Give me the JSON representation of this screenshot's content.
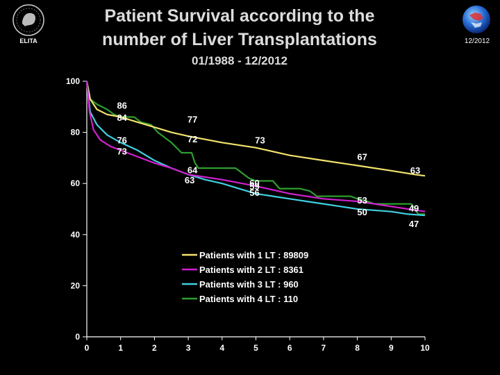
{
  "header": {
    "title_line1": "Patient Survival according to the",
    "title_line2": "number of Liver Transplantations",
    "subtitle": "01/1988 - 12/2012",
    "logo_text": "ELITA",
    "date": "12/2012"
  },
  "colors": {
    "background": "#000000",
    "title": "#dcdcdc",
    "one_lt": "#f2e36c",
    "two_lt": "#d020d0",
    "three_lt": "#40d0e0",
    "four_lt": "#2e9e2e",
    "axis": "#ffffff"
  },
  "chart_data": {
    "type": "line",
    "title": "Patient Survival according to the number of Liver Transplantations",
    "xlabel": "",
    "ylabel": "",
    "xlim": [
      0,
      10
    ],
    "ylim": [
      0,
      100
    ],
    "x_ticks": [
      0,
      1,
      2,
      3,
      4,
      5,
      6,
      7,
      8,
      9,
      10
    ],
    "y_ticks": [
      0,
      20,
      40,
      60,
      80,
      100
    ],
    "grid": false,
    "legend_position": "lower-center",
    "series": [
      {
        "name": "Patients with 1 LT : 89809",
        "color": "#f2e36c",
        "points": [
          [
            0,
            100
          ],
          [
            0.1,
            93
          ],
          [
            0.3,
            89
          ],
          [
            0.6,
            87
          ],
          [
            1,
            86
          ],
          [
            1.5,
            84
          ],
          [
            2,
            82
          ],
          [
            2.5,
            80
          ],
          [
            3,
            78.5
          ],
          [
            4,
            76
          ],
          [
            5,
            74
          ],
          [
            6,
            71
          ],
          [
            7,
            69
          ],
          [
            8,
            67
          ],
          [
            9,
            65
          ],
          [
            9.7,
            63.5
          ],
          [
            10,
            63
          ]
        ]
      },
      {
        "name": "Patients with 2 LT : 8361",
        "color": "#d020d0",
        "points": [
          [
            0,
            100
          ],
          [
            0.08,
            88
          ],
          [
            0.2,
            81
          ],
          [
            0.4,
            77
          ],
          [
            0.7,
            74.5
          ],
          [
            1,
            73
          ],
          [
            1.5,
            70.5
          ],
          [
            2,
            68
          ],
          [
            2.5,
            66
          ],
          [
            3,
            63.5
          ],
          [
            3.5,
            62.5
          ],
          [
            4,
            61.5
          ],
          [
            5,
            59
          ],
          [
            6,
            56
          ],
          [
            7,
            54
          ],
          [
            8,
            53
          ],
          [
            9,
            51
          ],
          [
            10,
            49
          ]
        ]
      },
      {
        "name": "Patients with 3 LT : 960",
        "color": "#40d0e0",
        "points": [
          [
            0,
            100
          ],
          [
            0.1,
            88
          ],
          [
            0.3,
            83
          ],
          [
            0.6,
            79
          ],
          [
            1,
            76
          ],
          [
            1.5,
            73
          ],
          [
            2,
            69
          ],
          [
            2.5,
            66
          ],
          [
            3,
            63.5
          ],
          [
            3.5,
            61.5
          ],
          [
            4,
            60
          ],
          [
            4.5,
            58
          ],
          [
            5,
            56
          ],
          [
            5.5,
            55
          ],
          [
            6,
            54
          ],
          [
            6.5,
            53
          ],
          [
            7,
            52
          ],
          [
            7.5,
            51
          ],
          [
            8,
            50
          ],
          [
            8.5,
            49.5
          ],
          [
            9,
            49
          ],
          [
            9.5,
            48
          ],
          [
            10,
            47.5
          ]
        ]
      },
      {
        "name": "Patients with 4 LT : 110",
        "color": "#2e9e2e",
        "points": [
          [
            0,
            100
          ],
          [
            0.1,
            93
          ],
          [
            0.3,
            91
          ],
          [
            0.6,
            89
          ],
          [
            0.8,
            87
          ],
          [
            1,
            86
          ],
          [
            1.4,
            86
          ],
          [
            1.6,
            84
          ],
          [
            1.9,
            83
          ],
          [
            2.1,
            80
          ],
          [
            2.5,
            76
          ],
          [
            2.8,
            72
          ],
          [
            3.1,
            72
          ],
          [
            3.2,
            68
          ],
          [
            3.3,
            66
          ],
          [
            4,
            66
          ],
          [
            4.4,
            66
          ],
          [
            4.6,
            64
          ],
          [
            4.8,
            62
          ],
          [
            5,
            61
          ],
          [
            5.5,
            61
          ],
          [
            5.7,
            58
          ],
          [
            6.3,
            58
          ],
          [
            6.6,
            57
          ],
          [
            6.8,
            55
          ],
          [
            7.5,
            55
          ],
          [
            7.8,
            55
          ],
          [
            8,
            54
          ],
          [
            8.3,
            53
          ],
          [
            8.5,
            52
          ],
          [
            9,
            52
          ],
          [
            9.6,
            52
          ],
          [
            9.8,
            48
          ],
          [
            10,
            48
          ]
        ]
      }
    ],
    "annotations": [
      {
        "text": "86",
        "x": 1,
        "y": 86,
        "color": "#ffffff"
      },
      {
        "text": "84",
        "x": 1,
        "y": 84,
        "color": "#ffffff"
      },
      {
        "text": "76",
        "x": 1,
        "y": 76,
        "color": "#ffffff"
      },
      {
        "text": "73",
        "x": 1,
        "y": 73,
        "color": "#ffffff"
      },
      {
        "text": "77",
        "x": 3,
        "y": 77,
        "color": "#ffffff"
      },
      {
        "text": "72",
        "x": 3,
        "y": 72,
        "color": "#ffffff"
      },
      {
        "text": "64",
        "x": 3,
        "y": 64,
        "color": "#ffffff"
      },
      {
        "text": "63",
        "x": 3,
        "y": 63,
        "color": "#ffffff"
      },
      {
        "text": "73",
        "x": 5,
        "y": 73,
        "color": "#ffffff"
      },
      {
        "text": "60",
        "x": 5,
        "y": 60,
        "color": "#ffffff"
      },
      {
        "text": "59",
        "x": 5,
        "y": 59,
        "color": "#ffffff"
      },
      {
        "text": "56",
        "x": 5,
        "y": 56,
        "color": "#ffffff"
      },
      {
        "text": "67",
        "x": 8,
        "y": 67,
        "color": "#ffffff"
      },
      {
        "text": "53",
        "x": 8,
        "y": 53,
        "color": "#ffffff"
      },
      {
        "text": "50",
        "x": 8,
        "y": 50,
        "color": "#ffffff"
      },
      {
        "text": "63",
        "x": 10,
        "y": 63,
        "color": "#ffffff"
      },
      {
        "text": "49",
        "x": 10,
        "y": 49,
        "color": "#ffffff"
      },
      {
        "text": "47",
        "x": 10,
        "y": 47,
        "color": "#ffffff"
      }
    ]
  }
}
